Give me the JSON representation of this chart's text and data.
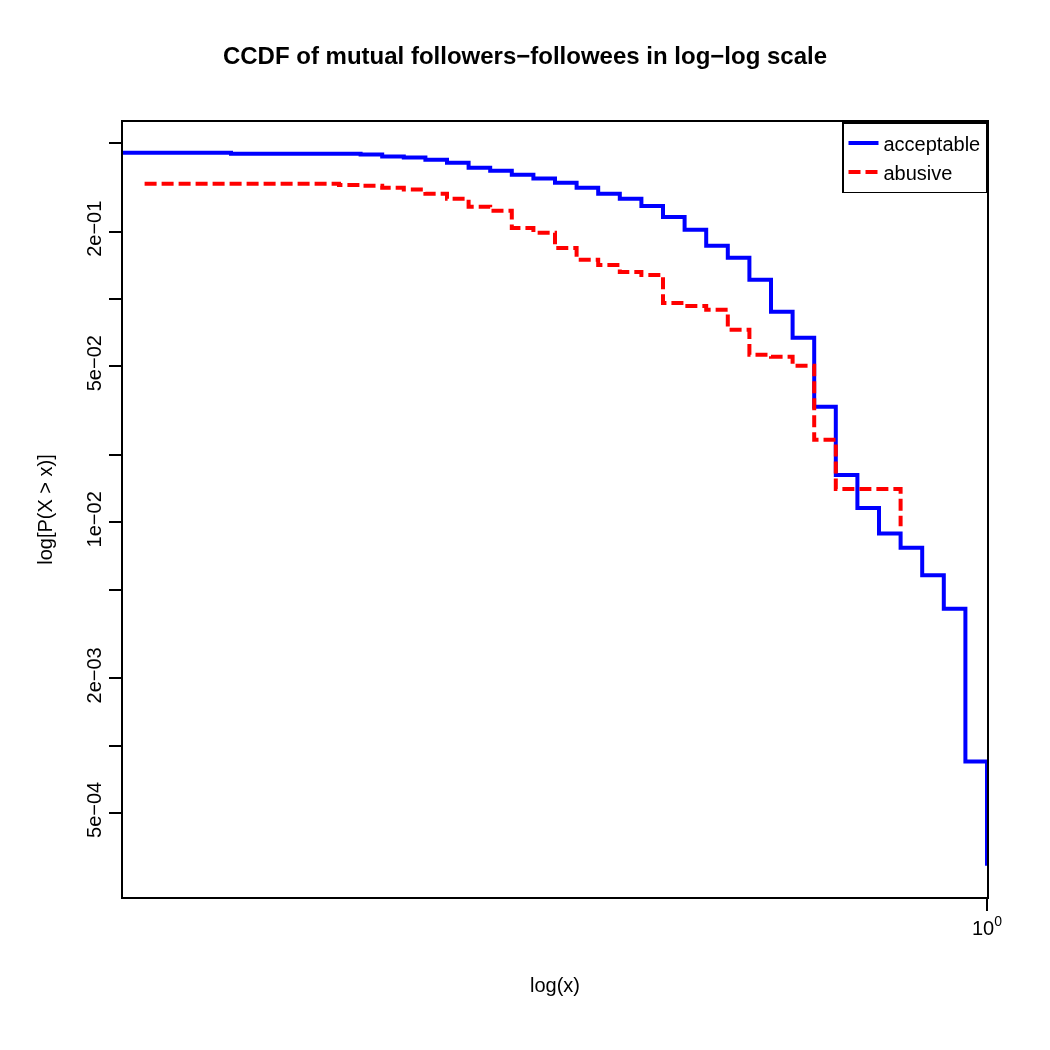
{
  "chart_data": {
    "type": "step",
    "title": "CCDF of mutual followers−followees in log−log scale",
    "xlabel": "log(x)",
    "ylabel": "log[P(X > x)]",
    "categories": [
      null,
      null,
      null,
      null,
      null,
      null,
      null,
      null,
      null,
      null,
      null,
      null,
      null,
      null,
      null,
      null,
      null,
      null,
      null,
      null,
      null,
      null,
      null,
      null,
      null,
      null,
      null,
      null,
      null,
      null,
      null,
      null,
      null,
      null,
      null,
      null,
      null,
      null,
      null,
      null,
      "10$^{0}$"
    ],
    "series": [
      {
        "name": "acceptable",
        "color": "#0000ff",
        "line_style": "solid",
        "values": [
          0.452,
          0.452,
          0.452,
          0.452,
          0.452,
          0.447,
          0.447,
          0.447,
          0.447,
          0.447,
          0.447,
          0.443,
          0.434,
          0.43,
          0.42,
          0.407,
          0.387,
          0.375,
          0.36,
          0.346,
          0.331,
          0.315,
          0.296,
          0.281,
          0.261,
          0.233,
          0.204,
          0.173,
          0.153,
          0.122,
          0.0877,
          0.067,
          0.0329,
          0.0163,
          0.0116,
          0.0089,
          0.0077,
          0.0058,
          0.0041,
          0.00085,
          0.00029
        ]
      },
      {
        "name": "abusive",
        "color": "#ff0000",
        "line_style": "dashed",
        "values": [
          null,
          0.328,
          0.328,
          0.328,
          0.328,
          0.328,
          0.328,
          0.328,
          0.328,
          0.328,
          0.324,
          0.321,
          0.315,
          0.309,
          0.296,
          0.281,
          0.259,
          0.248,
          0.208,
          0.198,
          0.169,
          0.15,
          0.142,
          0.132,
          0.128,
          0.096,
          0.093,
          0.0895,
          0.0728,
          0.0562,
          0.0551,
          0.0502,
          0.0234,
          0.0141,
          0.0141,
          0.0141,
          0.0096,
          null,
          null,
          null,
          null
        ]
      }
    ],
    "log": "y",
    "ylim": [
      0.00021,
      0.62
    ],
    "yticks": [
      {
        "value": 0.5,
        "label": null
      },
      {
        "value": 0.2,
        "label": "2e−01"
      },
      {
        "value": 0.1,
        "label": null
      },
      {
        "value": 0.05,
        "label": "5e−02"
      },
      {
        "value": 0.02,
        "label": null
      },
      {
        "value": 0.01,
        "label": "1e−02"
      },
      {
        "value": 0.005,
        "label": null
      },
      {
        "value": 0.002,
        "label": "2e−03"
      },
      {
        "value": 0.001,
        "label": null
      },
      {
        "value": 0.0005,
        "label": "5e−04"
      }
    ],
    "grid": false,
    "legend": "top right"
  }
}
